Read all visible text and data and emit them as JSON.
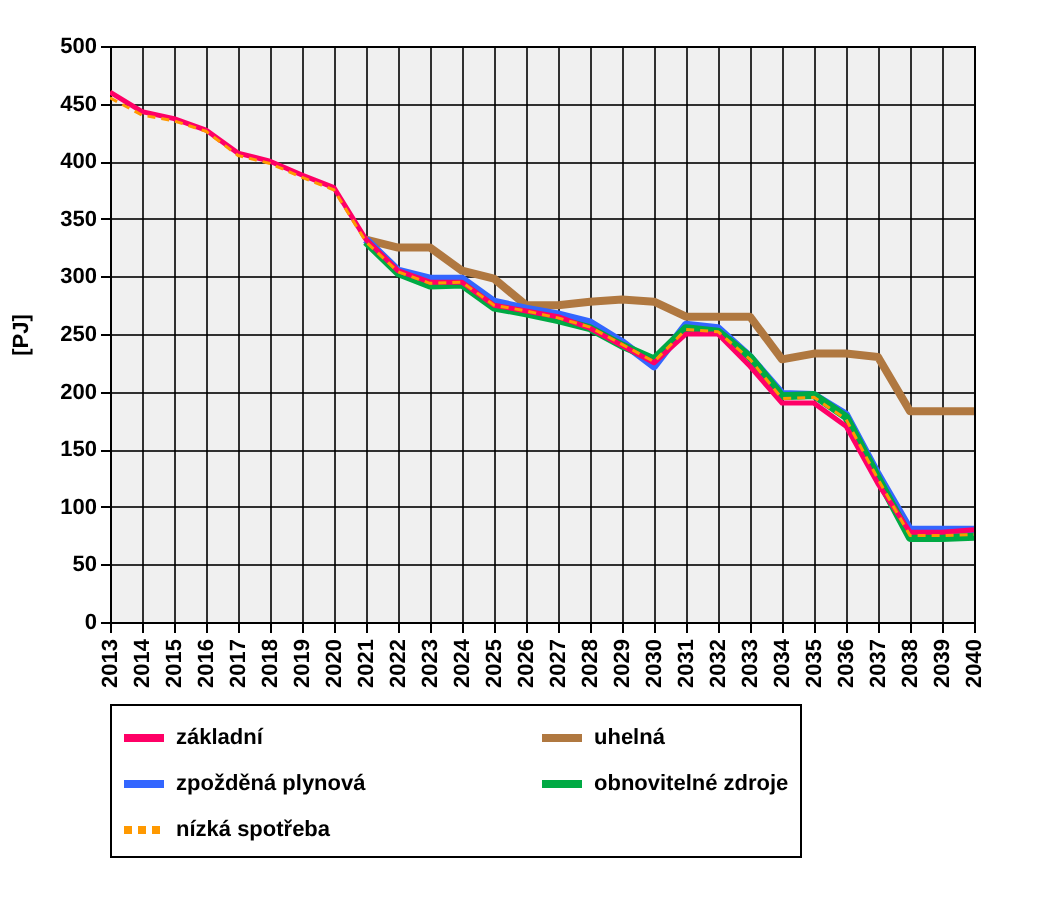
{
  "chart_data": {
    "type": "line",
    "ylabel": "[PJ]",
    "categories": [
      "2013",
      "2014",
      "2015",
      "2016",
      "2017",
      "2018",
      "2019",
      "2020",
      "2021",
      "2022",
      "2023",
      "2024",
      "2025",
      "2026",
      "2027",
      "2028",
      "2029",
      "2030",
      "2031",
      "2032",
      "2033",
      "2034",
      "2035",
      "2036",
      "2037",
      "2038",
      "2039",
      "2040"
    ],
    "ylim": [
      0,
      500
    ],
    "yticks": [
      0,
      50,
      100,
      150,
      200,
      250,
      300,
      350,
      400,
      450,
      500
    ],
    "grid": true,
    "legend": "bottom",
    "series": [
      {
        "name": "základní",
        "color": "#ff0066",
        "line_style": "solid",
        "values": [
          460,
          443,
          437,
          427,
          407,
          400,
          388,
          377,
          332,
          305,
          295,
          295,
          275,
          270,
          265,
          255,
          240,
          225,
          250,
          250,
          222,
          190,
          190,
          170,
          120,
          78,
          78,
          80
        ]
      },
      {
        "name": "uhelná",
        "color": "#b07840",
        "line_style": "solid",
        "values": [
          null,
          null,
          null,
          null,
          null,
          null,
          null,
          null,
          332,
          325,
          325,
          305,
          298,
          275,
          275,
          278,
          280,
          278,
          265,
          265,
          265,
          228,
          233,
          233,
          230,
          183,
          183,
          183
        ]
      },
      {
        "name": "zpožděná plynová",
        "color": "#3366ff",
        "line_style": "solid",
        "values": [
          null,
          null,
          null,
          null,
          null,
          null,
          null,
          null,
          332,
          305,
          298,
          298,
          278,
          272,
          267,
          260,
          243,
          222,
          258,
          255,
          230,
          198,
          197,
          180,
          128,
          80,
          80,
          80
        ]
      },
      {
        "name": "obnovitelné zdroje",
        "color": "#00aa44",
        "line_style": "solid",
        "values": [
          null,
          null,
          null,
          null,
          null,
          null,
          null,
          null,
          330,
          303,
          292,
          293,
          273,
          268,
          262,
          255,
          240,
          228,
          255,
          252,
          230,
          196,
          197,
          178,
          125,
          73,
          73,
          74
        ]
      },
      {
        "name": "nízká spotřeba",
        "color": "#ff9900",
        "line_style": "dashed",
        "values": [
          455,
          440,
          435,
          426,
          405,
          398,
          386,
          375,
          330,
          304,
          294,
          295,
          275,
          270,
          264,
          256,
          241,
          226,
          254,
          252,
          228,
          194,
          195,
          176,
          124,
          75,
          75,
          76
        ]
      }
    ]
  }
}
